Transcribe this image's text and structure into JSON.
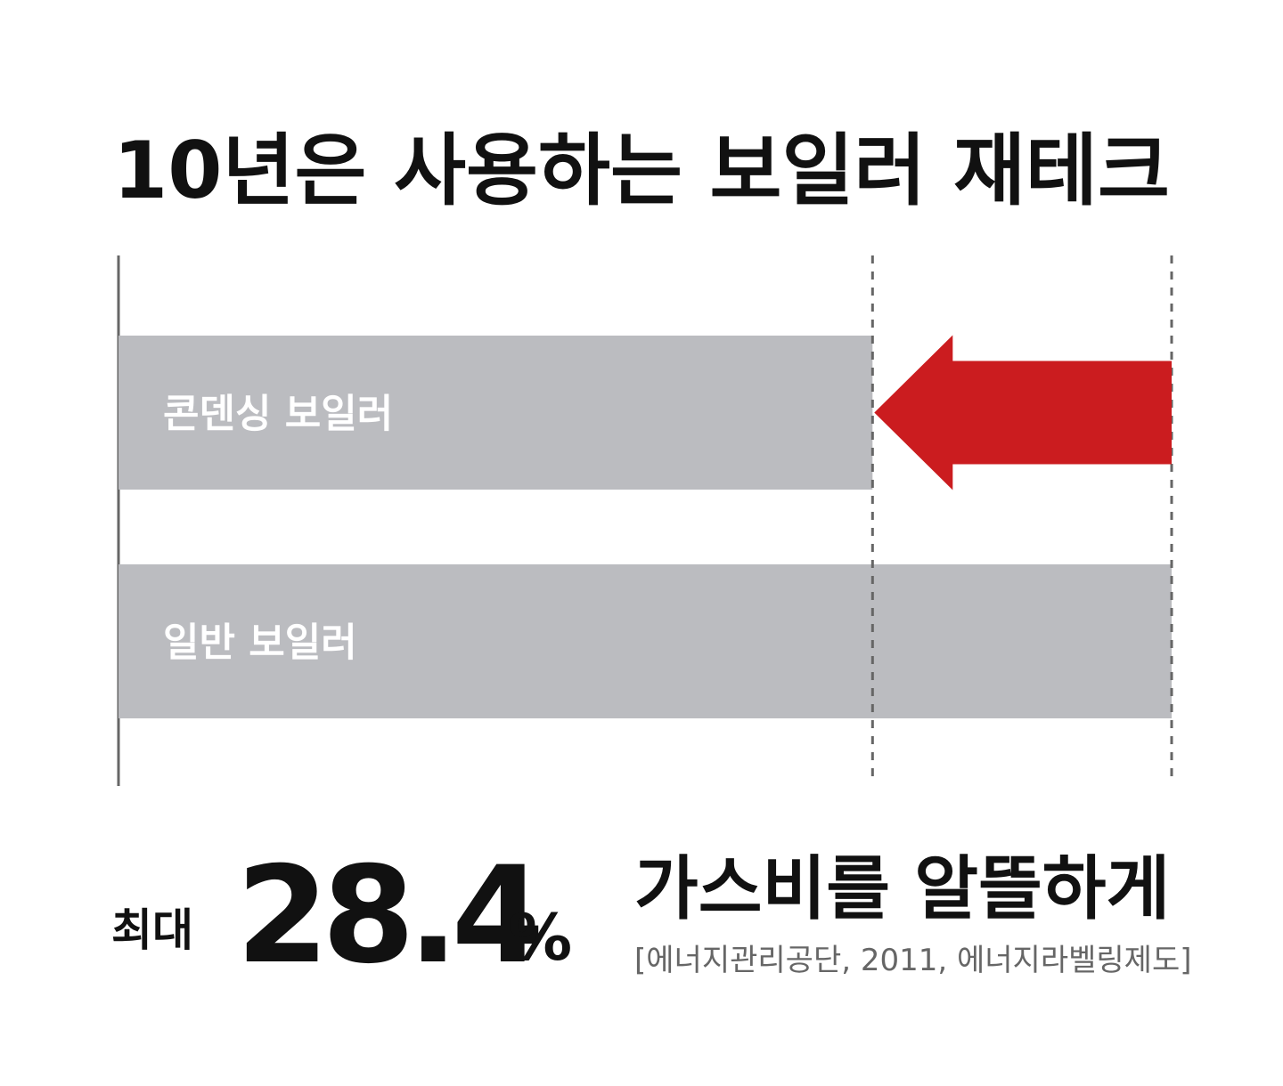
{
  "chart_data": {
    "type": "bar",
    "orientation": "horizontal",
    "title": "10년은 사용하는 보일러 재테크",
    "categories": [
      "콘덴싱 보일러",
      "일반 보일러"
    ],
    "values": [
      71.6,
      100
    ],
    "color": "#bbbcc0",
    "arrow_color": "#cb1c1f",
    "xlim": [
      0,
      100
    ],
    "highlight": {
      "prefix": "최대",
      "value": 28.4,
      "unit": "%"
    },
    "caption": "가스비를 알뜰하게",
    "source": "[에너지관리공단, 2011, 에너지라벨링제도]"
  }
}
